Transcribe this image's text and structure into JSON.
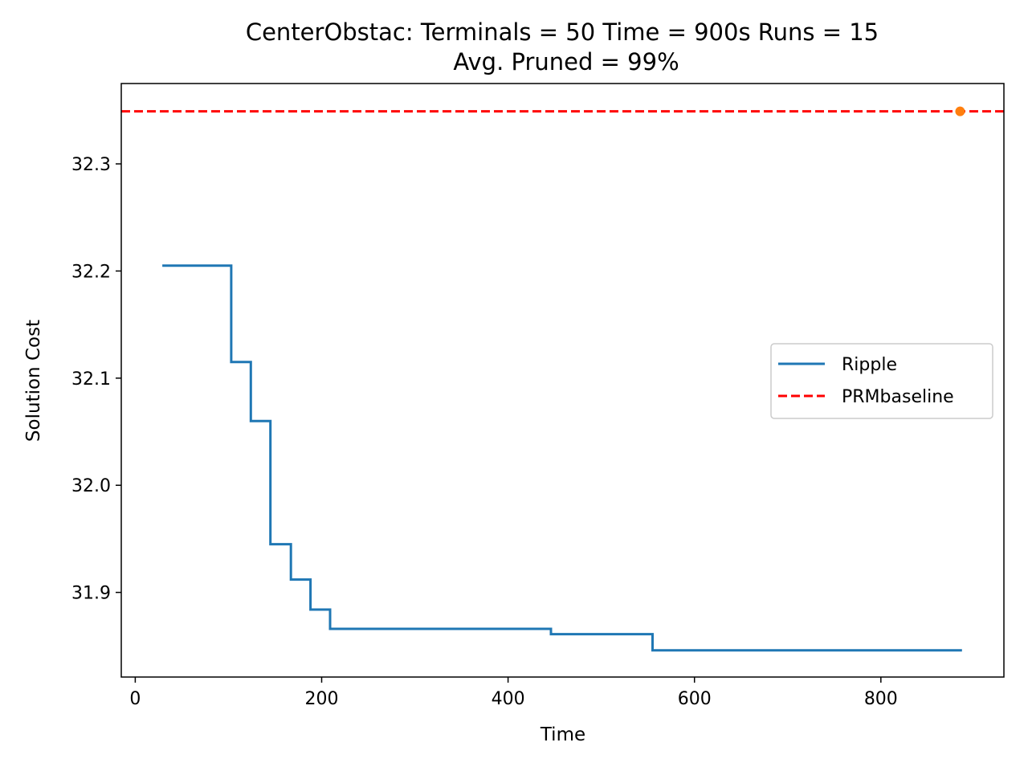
{
  "chart_data": {
    "type": "line",
    "title_line1": "CenterObstac:  Terminals = 50  Time = 900s  Runs = 15",
    "title_line2": "Avg. Pruned = 99%",
    "xlabel": "Time",
    "ylabel": "Solution Cost",
    "xlim": [
      -15,
      932
    ],
    "ylim": [
      31.821,
      32.375
    ],
    "xticks": [
      0,
      200,
      400,
      600,
      800
    ],
    "yticks": [
      31.9,
      32.0,
      32.1,
      32.2,
      32.3
    ],
    "xtick_labels": [
      "0",
      "200",
      "400",
      "600",
      "800"
    ],
    "ytick_labels": [
      "31.9",
      "32.0",
      "32.1",
      "32.2",
      "32.3"
    ],
    "legend_position": "center-right",
    "series": [
      {
        "name": "Ripple",
        "style": "step",
        "color": "#1f77b4",
        "x": [
          29,
          103,
          103,
          124,
          124,
          145,
          145,
          167,
          167,
          188,
          188,
          209,
          209,
          446,
          446,
          555,
          555,
          887
        ],
        "y": [
          32.205,
          32.205,
          32.115,
          32.115,
          32.06,
          32.06,
          31.945,
          31.945,
          31.912,
          31.912,
          31.884,
          31.884,
          31.866,
          31.866,
          31.861,
          31.861,
          31.846,
          31.846
        ]
      },
      {
        "name": "PRMbaseline",
        "style": "hline",
        "color": "#ff0000",
        "y": 32.349
      }
    ],
    "markers": [
      {
        "x": 885,
        "y": 32.349,
        "color": "#ff7f0e"
      }
    ],
    "grid": false
  }
}
